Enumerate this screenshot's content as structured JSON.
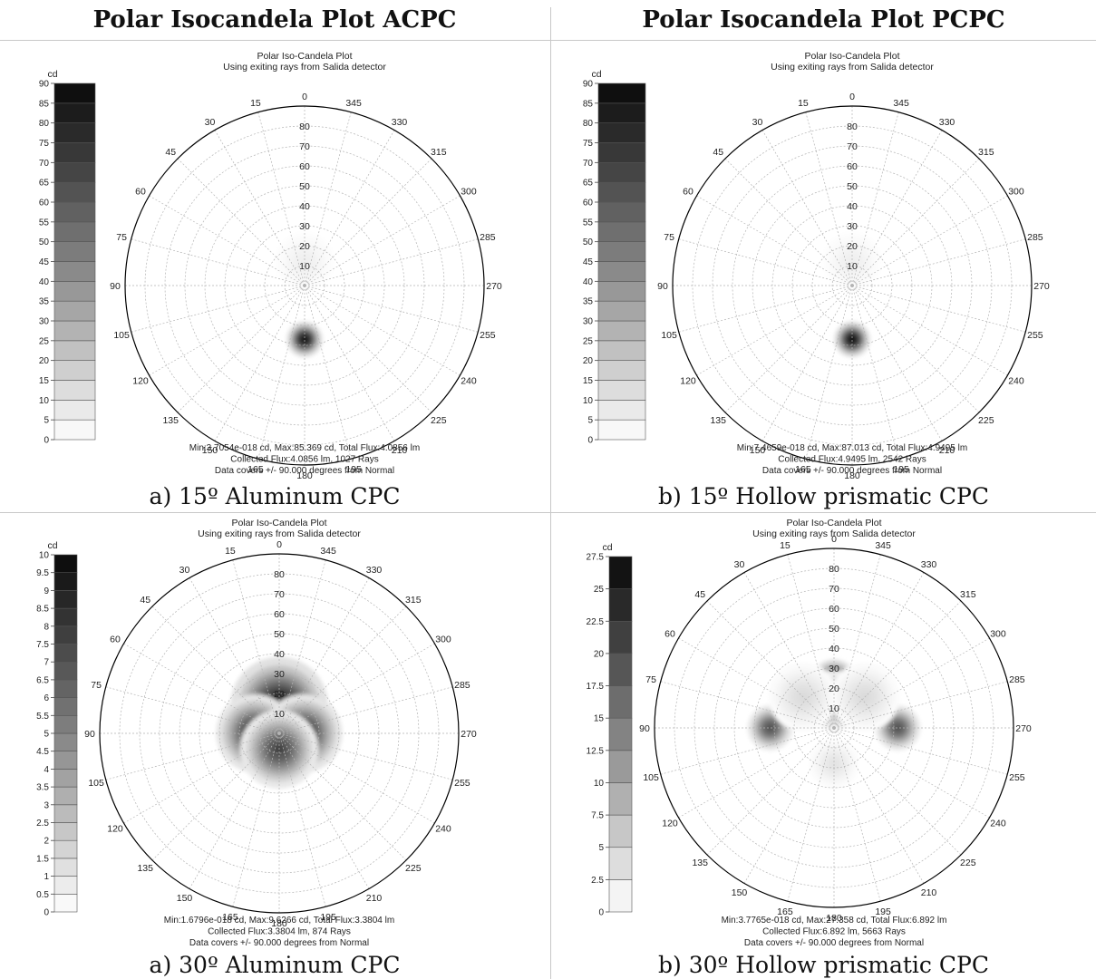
{
  "headers": {
    "left": "Polar Isocandela Plot ACPC",
    "right": "Polar Isocandela Plot PCPC"
  },
  "colors": {
    "ink": "#000000",
    "grid": "#b4b4b4",
    "rule": "#c8c8c8"
  },
  "chart_data": [
    {
      "type": "heatmap",
      "caption": "a) 15º Aluminum CPC",
      "title": "Polar Iso-Candela Plot",
      "subtitle": "Using exiting rays from Salida detector",
      "legend_title": "cd",
      "legend_ticks": [
        "0",
        "5",
        "10",
        "15",
        "20",
        "25",
        "30",
        "35",
        "40",
        "45",
        "50",
        "55",
        "60",
        "65",
        "70",
        "75",
        "80",
        "85",
        "90"
      ],
      "value_range": [
        0,
        90
      ],
      "angle_labels": [
        "0",
        "15",
        "30",
        "45",
        "60",
        "75",
        "90",
        "105",
        "120",
        "135",
        "150",
        "165",
        "180",
        "195",
        "210",
        "225",
        "240",
        "255",
        "270",
        "285",
        "300",
        "315",
        "330",
        "345"
      ],
      "radial_labels": [
        "10",
        "20",
        "30",
        "40",
        "50",
        "60",
        "70",
        "80"
      ],
      "radial_range": [
        0,
        90
      ],
      "footer": [
        "Min:3.7054e-018 cd, Max:85.369 cd, Total Flux:4.0856 lm",
        "Collected Flux:4.0856 lm, 1027 Rays",
        "Data covers +/- 90.000 degrees from Normal"
      ],
      "blobs": [
        {
          "azimuth": 180,
          "polar": 27,
          "value": 85.4,
          "spread": 3.5
        },
        {
          "azimuth": 0,
          "polar": 12,
          "value": 6,
          "spread": 6
        }
      ]
    },
    {
      "type": "heatmap",
      "caption": "b) 15º Hollow prismatic CPC",
      "title": "Polar Iso-Candela Plot",
      "subtitle": "Using exiting rays from Salida detector",
      "legend_title": "cd",
      "legend_ticks": [
        "0",
        "5",
        "10",
        "15",
        "20",
        "25",
        "30",
        "35",
        "40",
        "45",
        "50",
        "55",
        "60",
        "65",
        "70",
        "75",
        "80",
        "85",
        "90"
      ],
      "value_range": [
        0,
        90
      ],
      "angle_labels": [
        "0",
        "15",
        "30",
        "45",
        "60",
        "75",
        "90",
        "105",
        "120",
        "135",
        "150",
        "165",
        "180",
        "195",
        "210",
        "225",
        "240",
        "255",
        "270",
        "285",
        "300",
        "315",
        "330",
        "345"
      ],
      "radial_labels": [
        "10",
        "20",
        "30",
        "40",
        "50",
        "60",
        "70",
        "80"
      ],
      "radial_range": [
        0,
        90
      ],
      "footer": [
        "Min:7.4659e-018 cd, Max:87.013 cd, Total Flux:4.9495 lm",
        "Collected Flux:4.9495 lm, 2542 Rays",
        "Data covers +/- 90.000 degrees from Normal"
      ],
      "blobs": [
        {
          "azimuth": 180,
          "polar": 27,
          "value": 87.0,
          "spread": 3.5
        },
        {
          "azimuth": 0,
          "polar": 12,
          "value": 6,
          "spread": 6
        }
      ]
    },
    {
      "type": "heatmap",
      "caption": "a) 30º Aluminum CPC",
      "title": "Polar Iso-Candela Plot",
      "subtitle": "Using exiting rays from Salida detector",
      "legend_title": "cd",
      "legend_ticks": [
        "0",
        "0.5",
        "1",
        "1.5",
        "2",
        "2.5",
        "3",
        "3.5",
        "4",
        "4.5",
        "5",
        "5.5",
        "6",
        "6.5",
        "7",
        "7.5",
        "8",
        "8.5",
        "9",
        "9.5",
        "10"
      ],
      "value_range": [
        0,
        10
      ],
      "angle_labels": [
        "0",
        "15",
        "30",
        "45",
        "60",
        "75",
        "90",
        "105",
        "120",
        "135",
        "150",
        "165",
        "180",
        "195",
        "210",
        "225",
        "240",
        "255",
        "270",
        "285",
        "300",
        "315",
        "330",
        "345"
      ],
      "radial_labels": [
        "10",
        "20",
        "30",
        "40",
        "50",
        "60",
        "70",
        "80"
      ],
      "radial_range": [
        0,
        90
      ],
      "footer": [
        "Min:1.6796e-018 cd, Max:9.6266 cd, Total Flux:3.3804 lm",
        "Collected Flux:3.3804 lm, 874 Rays",
        "Data covers +/- 90.000 degrees from Normal"
      ],
      "blobs": [
        {
          "azimuth": 0,
          "polar": 14,
          "value": 9.6,
          "spread": 10
        },
        {
          "azimuth": 90,
          "polar": 12,
          "value": 8.5,
          "spread": 8
        },
        {
          "azimuth": 270,
          "polar": 12,
          "value": 8.5,
          "spread": 8
        },
        {
          "azimuth": 180,
          "polar": 8,
          "value": 7.5,
          "spread": 8
        }
      ]
    },
    {
      "type": "heatmap",
      "caption": "b) 30º Hollow prismatic CPC",
      "title": "Polar Iso-Candela Plot",
      "subtitle": "Using exiting rays from Salida detector",
      "legend_title": "cd",
      "legend_ticks": [
        "0",
        "2.5",
        "5",
        "7.5",
        "10",
        "12.5",
        "15",
        "17.5",
        "20",
        "22.5",
        "25",
        "27.5"
      ],
      "value_range": [
        0,
        27.5
      ],
      "angle_labels": [
        "0",
        "15",
        "30",
        "45",
        "60",
        "75",
        "90",
        "105",
        "120",
        "135",
        "150",
        "165",
        "180",
        "195",
        "210",
        "225",
        "240",
        "255",
        "270",
        "285",
        "300",
        "315",
        "330",
        "345"
      ],
      "radial_labels": [
        "10",
        "20",
        "30",
        "40",
        "50",
        "60",
        "70",
        "80"
      ],
      "radial_range": [
        0,
        90
      ],
      "footer": [
        "Min:3.7765e-018 cd, Max:27.358 cd, Total Flux:6.892 lm",
        "Collected Flux:6.892 lm, 5663 Rays",
        "Data covers +/- 90.000 degrees from Normal"
      ],
      "blobs": [
        {
          "azimuth": 0,
          "polar": 23,
          "value": 27.4,
          "spread": 4.5
        },
        {
          "azimuth": 0,
          "polar": 14,
          "value": 14,
          "spread": 6
        },
        {
          "azimuth": 90,
          "polar": 32,
          "value": 19,
          "spread": 4.5
        },
        {
          "azimuth": 270,
          "polar": 32,
          "value": 19,
          "spread": 4.5
        },
        {
          "azimuth": 45,
          "polar": 22,
          "value": 4,
          "spread": 7
        },
        {
          "azimuth": 315,
          "polar": 22,
          "value": 4,
          "spread": 7
        },
        {
          "azimuth": 180,
          "polar": 18,
          "value": 3,
          "spread": 5
        }
      ]
    }
  ]
}
